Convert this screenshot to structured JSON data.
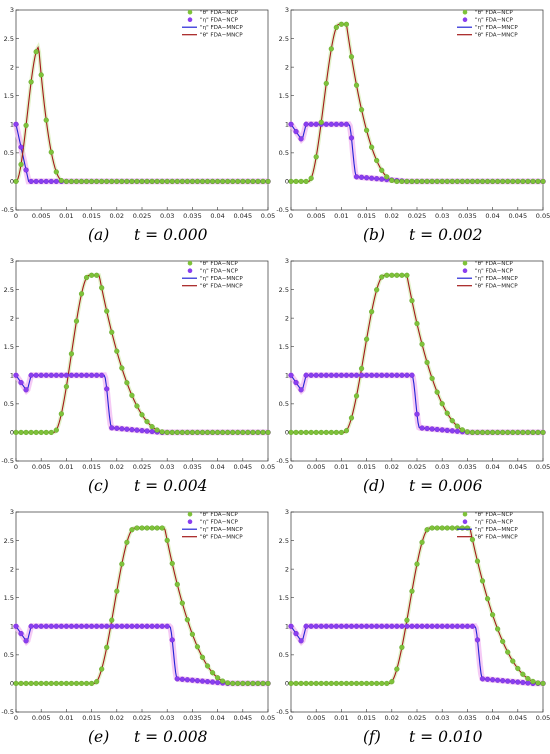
{
  "figure": {
    "legend_labels": [
      "\"θ\" FDA−NCP",
      "\"η\" FDA−NCP",
      "\"η\" FDA−MNCP",
      "\"θ\" FDA−MNCP"
    ],
    "colors": {
      "theta_ncp_marker": "#7ec23a",
      "eta_ncp_marker": "#8a3ef0",
      "eta_mncp_line": "#2323d6",
      "theta_mncp_line": "#a31a1a",
      "halo": "#f2b8f2"
    }
  },
  "chart_data": [
    {
      "type": "line",
      "caption_label": "(a)",
      "time_text": "t = 0.000",
      "xlim": [
        0,
        0.05
      ],
      "ylim": [
        -0.5,
        3
      ],
      "xticks": [
        "0",
        "0.005",
        "0.01",
        "0.015",
        "0.02",
        "0.025",
        "0.03",
        "0.035",
        "0.04",
        "0.045",
        "0.05"
      ],
      "yticks": [
        "-0.5",
        "0",
        "0.5",
        "1",
        "1.5",
        "2",
        "2.5",
        "3"
      ],
      "theta_profile": {
        "base": 0,
        "peak": 2.35,
        "rise_start": 0.0,
        "rise_end": 0.0045,
        "fall_start": 0.0045,
        "fall_end": 0.0095
      },
      "eta_profile": {
        "type": "decay",
        "start": 1.0,
        "end_x": 0.0025,
        "low": 0.0
      }
    },
    {
      "type": "line",
      "caption_label": "(b)",
      "time_text": "t = 0.002",
      "xlim": [
        0,
        0.05
      ],
      "ylim": [
        -0.5,
        3
      ],
      "xticks": [
        "0",
        "0.005",
        "0.01",
        "0.015",
        "0.02",
        "0.025",
        "0.03",
        "0.035",
        "0.04",
        "0.045",
        "0.05"
      ],
      "yticks": [
        "-0.5",
        "0",
        "0.5",
        "1",
        "1.5",
        "2",
        "2.5",
        "3"
      ],
      "theta_profile": {
        "base": 0,
        "peak": 2.75,
        "rise_start": 0.0035,
        "rise_end": 0.0095,
        "fall_start": 0.011,
        "fall_end": 0.021
      },
      "eta_profile": {
        "type": "plateau",
        "start": 1.0,
        "dip_x": 0.0022,
        "dip": 0.72,
        "plateau": 1.0,
        "drop_x": 0.0115,
        "low": 0.0
      }
    },
    {
      "type": "line",
      "caption_label": "(c)",
      "time_text": "t = 0.004",
      "xlim": [
        0,
        0.05
      ],
      "ylim": [
        -0.5,
        3
      ],
      "xticks": [
        "0",
        "0.005",
        "0.01",
        "0.015",
        "0.02",
        "0.025",
        "0.03",
        "0.035",
        "0.04",
        "0.045",
        "0.05"
      ],
      "yticks": [
        "-0.5",
        "0",
        "0.5",
        "1",
        "1.5",
        "2",
        "2.5",
        "3"
      ],
      "theta_profile": {
        "base": 0,
        "peak": 2.75,
        "rise_start": 0.0075,
        "rise_end": 0.0145,
        "fall_start": 0.0165,
        "fall_end": 0.03
      },
      "eta_profile": {
        "type": "plateau",
        "start": 1.0,
        "dip_x": 0.0022,
        "dip": 0.72,
        "plateau": 1.0,
        "drop_x": 0.0175,
        "low": 0.0
      }
    },
    {
      "type": "line",
      "caption_label": "(d)",
      "time_text": "t = 0.006",
      "xlim": [
        0,
        0.05
      ],
      "ylim": [
        -0.5,
        3
      ],
      "xticks": [
        "0",
        "0.005",
        "0.01",
        "0.015",
        "0.02",
        "0.025",
        "0.03",
        "0.035",
        "0.04",
        "0.045",
        "0.05"
      ],
      "yticks": [
        "-0.5",
        "0",
        "0.5",
        "1",
        "1.5",
        "2",
        "2.5",
        "3"
      ],
      "theta_profile": {
        "base": 0,
        "peak": 2.75,
        "rise_start": 0.0105,
        "rise_end": 0.0185,
        "fall_start": 0.023,
        "fall_end": 0.036
      },
      "eta_profile": {
        "type": "plateau",
        "start": 1.0,
        "dip_x": 0.0022,
        "dip": 0.72,
        "plateau": 1.0,
        "drop_x": 0.024,
        "low": 0.0
      }
    },
    {
      "type": "line",
      "caption_label": "(e)",
      "time_text": "t = 0.008",
      "xlim": [
        0,
        0.05
      ],
      "ylim": [
        -0.5,
        3
      ],
      "xticks": [
        "0",
        "0.005",
        "0.01",
        "0.015",
        "0.02",
        "0.025",
        "0.03",
        "0.035",
        "0.04",
        "0.045",
        "0.05"
      ],
      "yticks": [
        "-0.5",
        "0",
        "0.5",
        "1",
        "1.5",
        "2",
        "2.5",
        "3"
      ],
      "theta_profile": {
        "base": 0,
        "peak": 2.72,
        "rise_start": 0.0155,
        "rise_end": 0.0235,
        "fall_start": 0.0295,
        "fall_end": 0.043
      },
      "eta_profile": {
        "type": "plateau",
        "start": 1.0,
        "dip_x": 0.0022,
        "dip": 0.72,
        "plateau": 1.0,
        "drop_x": 0.0305,
        "low": 0.0
      }
    },
    {
      "type": "line",
      "caption_label": "(f)",
      "time_text": "t = 0.010",
      "xlim": [
        0,
        0.05
      ],
      "ylim": [
        -0.5,
        3
      ],
      "xticks": [
        "0",
        "0.005",
        "0.01",
        "0.015",
        "0.02",
        "0.025",
        "0.03",
        "0.035",
        "0.04",
        "0.045",
        "0.05"
      ],
      "yticks": [
        "-0.5",
        "0",
        "0.5",
        "1",
        "1.5",
        "2",
        "2.5",
        "3"
      ],
      "theta_profile": {
        "base": 0,
        "peak": 2.72,
        "rise_start": 0.0195,
        "rise_end": 0.0275,
        "fall_start": 0.0355,
        "fall_end": 0.05
      },
      "eta_profile": {
        "type": "plateau",
        "start": 1.0,
        "dip_x": 0.0022,
        "dip": 0.72,
        "plateau": 1.0,
        "drop_x": 0.0365,
        "low": 0.0
      }
    }
  ]
}
